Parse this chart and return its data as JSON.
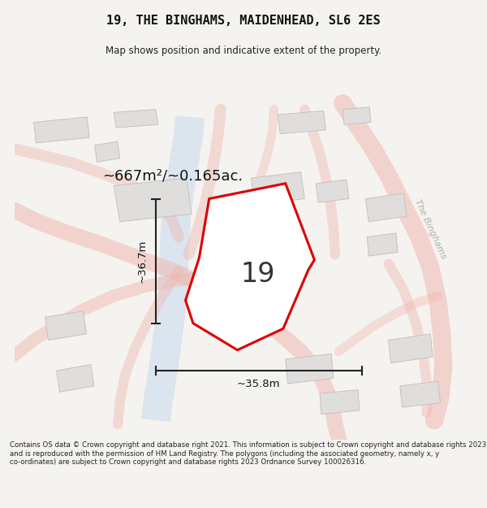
{
  "title": "19, THE BINGHAMS, MAIDENHEAD, SL6 2ES",
  "subtitle": "Map shows position and indicative extent of the property.",
  "footer": "Contains OS data © Crown copyright and database right 2021. This information is subject to Crown copyright and database rights 2023 and is reproduced with the permission of HM Land Registry. The polygons (including the associated geometry, namely x, y co-ordinates) are subject to Crown copyright and database rights 2023 Ordnance Survey 100026316.",
  "area_label": "~667m²/~0.165ac.",
  "number_label": "19",
  "width_label": "~35.8m",
  "height_label": "~36.7m",
  "bg_color": "#f5f3f0",
  "road_pink": "#f0b8b0",
  "road_pink_alpha": 0.75,
  "water_blue": "#c8d8ed",
  "water_alpha": 0.65,
  "building_fc": "#e0dedd",
  "building_ec": "#c0bebb",
  "plot_red": "#dd0000",
  "plot_fill": "#ffffff",
  "dim_color": "#222222",
  "label_color": "#111111",
  "road_label_color": "#b0aeac",
  "the_binghams_label": "The Binghams"
}
